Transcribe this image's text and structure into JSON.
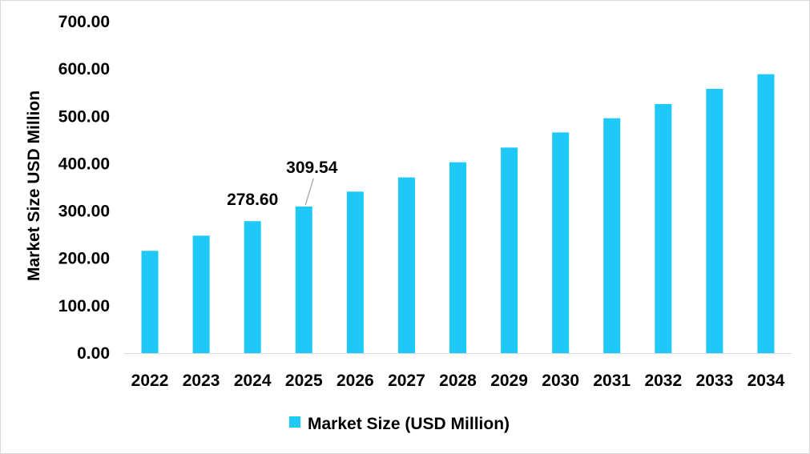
{
  "chart_data": {
    "type": "bar",
    "categories": [
      "2022",
      "2023",
      "2024",
      "2025",
      "2026",
      "2027",
      "2028",
      "2029",
      "2030",
      "2031",
      "2032",
      "2033",
      "2034"
    ],
    "series": [
      {
        "name": "Market Size (USD Million)",
        "values": [
          216,
          248,
          278.6,
          309.54,
          341,
          371,
          403,
          434,
          466,
          496,
          526,
          558,
          589
        ]
      }
    ],
    "ylabel": "Market Size USD Million",
    "xlabel": "",
    "ylim": [
      0,
      700
    ],
    "yticks": [
      "0.00",
      "100.00",
      "200.00",
      "300.00",
      "400.00",
      "500.00",
      "600.00",
      "700.00"
    ],
    "data_labels": [
      {
        "category": "2024",
        "text": "278.60"
      },
      {
        "category": "2025",
        "text": "309.54"
      }
    ],
    "grid": false,
    "legend": "bottom-center",
    "colors": {
      "bar": "#1ec8f7",
      "axis": "#d9d9d9",
      "leader": "#a6a6a6"
    }
  }
}
